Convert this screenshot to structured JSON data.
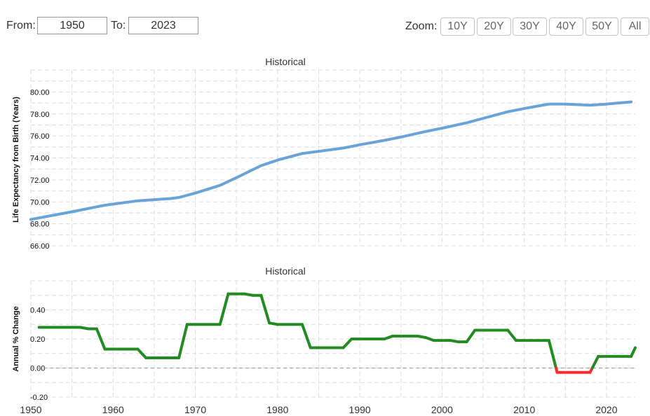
{
  "controls": {
    "from_label": "From:",
    "from_value": "1950",
    "to_label": "To:",
    "to_value": "2023",
    "zoom_label": "Zoom:",
    "zoom_buttons": [
      "10Y",
      "20Y",
      "30Y",
      "40Y",
      "50Y",
      "All"
    ]
  },
  "colors": {
    "life_line": "#6aa3d8",
    "change_positive": "#228b22",
    "change_negative": "#ff2a2a",
    "grid": "#dddddd"
  },
  "chart_data": [
    {
      "type": "line",
      "title": "Historical",
      "xlabel": "",
      "ylabel": "Life Expectancy from Birth (Years)",
      "xlim": [
        1950,
        2023.5
      ],
      "ylim": [
        66,
        82
      ],
      "yticks": [
        66,
        68,
        70,
        72,
        74,
        76,
        78,
        80
      ],
      "ytick_labels": [
        "66.00",
        "68.00",
        "70.00",
        "72.00",
        "74.00",
        "76.00",
        "78.00",
        "80.00"
      ],
      "grid": true,
      "series": [
        {
          "name": "Life Expectancy",
          "x": [
            1950,
            1955,
            1959,
            1963,
            1967,
            1968,
            1970,
            1973,
            1975,
            1978,
            1980,
            1983,
            1985,
            1988,
            1990,
            1993,
            1995,
            1998,
            2000,
            2003,
            2005,
            2008,
            2010,
            2013,
            2015,
            2018,
            2020,
            2023
          ],
          "values": [
            68.4,
            69.1,
            69.7,
            70.1,
            70.3,
            70.4,
            70.8,
            71.5,
            72.2,
            73.3,
            73.8,
            74.4,
            74.6,
            74.9,
            75.2,
            75.6,
            75.9,
            76.4,
            76.7,
            77.2,
            77.6,
            78.2,
            78.5,
            78.9,
            78.9,
            78.8,
            78.9,
            79.1
          ]
        }
      ]
    },
    {
      "type": "line",
      "title": "Historical",
      "xlabel": "",
      "ylabel": "Annual % Change",
      "xlim": [
        1950,
        2023.5
      ],
      "ylim": [
        -0.2,
        0.6
      ],
      "yticks": [
        -0.2,
        0.0,
        0.2,
        0.4
      ],
      "ytick_labels": [
        "-0.20",
        "0.00",
        "0.20",
        "0.40"
      ],
      "xticks": [
        1950,
        1960,
        1970,
        1980,
        1990,
        2000,
        2010,
        2020
      ],
      "xtick_labels": [
        "1950",
        "1960",
        "1970",
        "1980",
        "1990",
        "2000",
        "2010",
        "2020"
      ],
      "grid": true,
      "zero_line": 0,
      "series": [
        {
          "name": "Annual % Change",
          "x": [
            1951,
            1956,
            1957,
            1958,
            1959,
            1963,
            1964,
            1968,
            1969,
            1973,
            1974,
            1976,
            1977,
            1978,
            1979,
            1980,
            1983,
            1984,
            1988,
            1989,
            1993,
            1994,
            1997,
            1998,
            1999,
            2001,
            2002,
            2003,
            2004,
            2008,
            2009,
            2013,
            2014,
            2018,
            2019,
            2023,
            2023.5
          ],
          "values": [
            0.28,
            0.28,
            0.27,
            0.27,
            0.13,
            0.13,
            0.07,
            0.07,
            0.3,
            0.3,
            0.51,
            0.51,
            0.5,
            0.5,
            0.31,
            0.3,
            0.3,
            0.14,
            0.14,
            0.2,
            0.2,
            0.22,
            0.22,
            0.21,
            0.19,
            0.19,
            0.18,
            0.18,
            0.26,
            0.26,
            0.19,
            0.19,
            -0.03,
            -0.03,
            0.08,
            0.08,
            0.14
          ]
        }
      ]
    }
  ]
}
